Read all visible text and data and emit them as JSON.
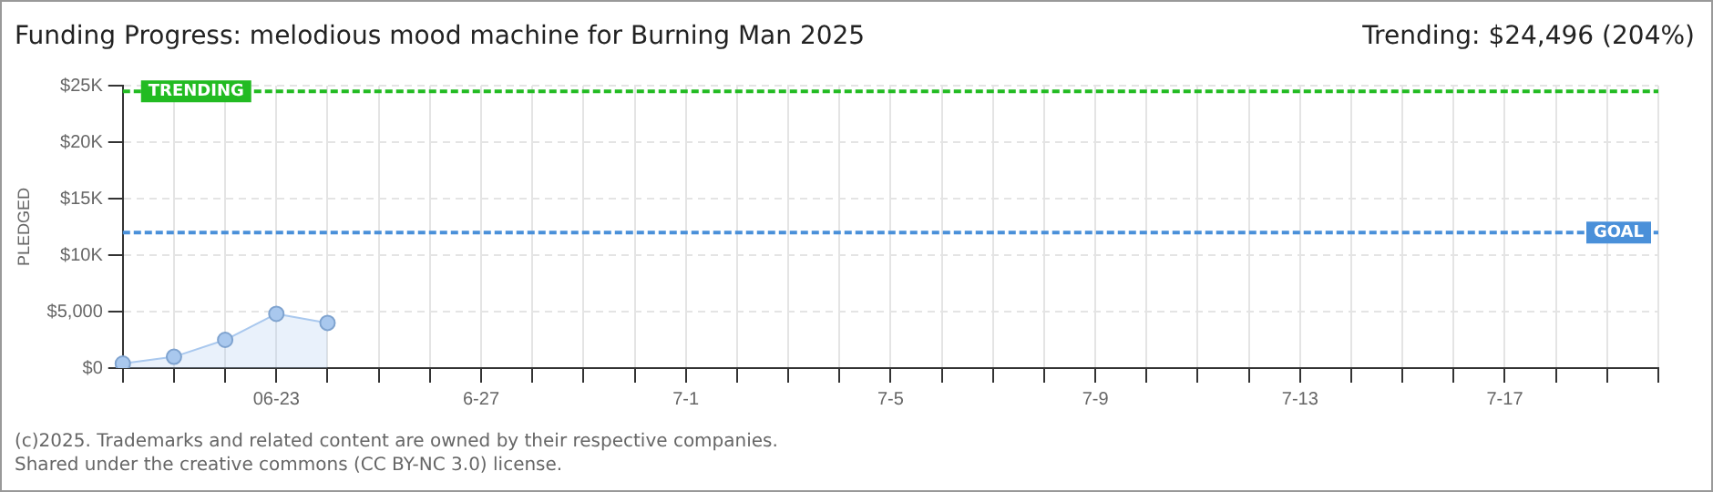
{
  "chart_data": {
    "type": "area",
    "title": "Funding Progress: melodious mood machine for Burning Man 2025",
    "subtitle": "Trending: $24,496 (204%)",
    "ylabel": "PLEDGED",
    "categories": [
      null,
      null,
      null,
      "06-23",
      null,
      null,
      null,
      "6-27",
      null,
      null,
      null,
      "7-1",
      null,
      null,
      null,
      "7-5",
      null,
      null,
      null,
      "7-9",
      null,
      null,
      null,
      "7-13",
      null,
      null,
      null,
      "7-17",
      null,
      null,
      null
    ],
    "series": [
      {
        "color": "#a9c8ee",
        "values": [
          400,
          1000,
          2500,
          4800,
          4000,
          null,
          null,
          null,
          null,
          null,
          null,
          null,
          null,
          null,
          null,
          null,
          null,
          null,
          null,
          null,
          null,
          null,
          null,
          null,
          null,
          null,
          null,
          null,
          null,
          null,
          null
        ]
      }
    ],
    "ylim": [
      0,
      25000
    ],
    "yticks": [
      {
        "value": 0,
        "label": "$0"
      },
      {
        "value": 5000,
        "label": "$5,000"
      },
      {
        "value": 10000,
        "label": "$10K"
      },
      {
        "value": 15000,
        "label": "$15K"
      },
      {
        "value": 20000,
        "label": "$20K"
      },
      {
        "value": 25000,
        "label": "$25K"
      }
    ],
    "grid": true,
    "legend": false,
    "marker": "circle",
    "ref_lines": [
      {
        "axis": "y",
        "value": 24496,
        "label": "TRENDING",
        "color": "#22bb22",
        "line_style": "dashed"
      },
      {
        "axis": "y",
        "value": 12000,
        "label": "GOAL",
        "color": "#4a90d9",
        "line_style": "dashed"
      }
    ],
    "annotations": [
      "(c)2025. Trademarks and related content are owned by their respective companies.",
      "Shared under the creative commons (CC BY-NC 3.0) license."
    ]
  }
}
